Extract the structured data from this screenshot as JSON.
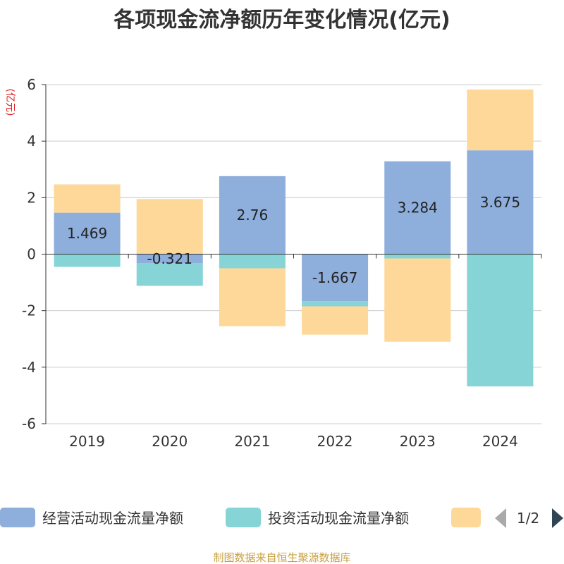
{
  "title": "各项现金流净额历年变化情况(亿元)",
  "unit_label": "(亿元)",
  "source": "制图数据来自恒生聚源数据库",
  "legend": {
    "page_label": "1/2",
    "prev_icon": "triangle-left-icon",
    "next_icon": "triangle-right-icon"
  },
  "colors": {
    "operating": "#8eaedb",
    "investing": "#86d4d6",
    "financing": "#fdd898",
    "axis": "#333333",
    "grid": "#cccccc"
  },
  "chart_data": {
    "type": "bar",
    "stacked": true,
    "categories": [
      "2019",
      "2020",
      "2021",
      "2022",
      "2023",
      "2024"
    ],
    "ylim": [
      -6,
      6
    ],
    "yticks": [
      6,
      4,
      2,
      0,
      -2,
      -4,
      -6
    ],
    "grid": true,
    "legend_position": "bottom",
    "series": [
      {
        "name": "经营活动现金流量净额",
        "values": [
          1.469,
          -0.321,
          2.76,
          -1.667,
          3.284,
          3.675
        ],
        "show_labels": true
      },
      {
        "name": "投资活动现金流量净额",
        "values": [
          -0.45,
          -0.8,
          -0.5,
          -0.18,
          -0.15,
          -4.68
        ],
        "show_labels": false
      },
      {
        "name": "",
        "values": [
          1.0,
          1.95,
          -2.05,
          -1.0,
          -2.95,
          2.15
        ],
        "show_labels": false
      }
    ]
  }
}
